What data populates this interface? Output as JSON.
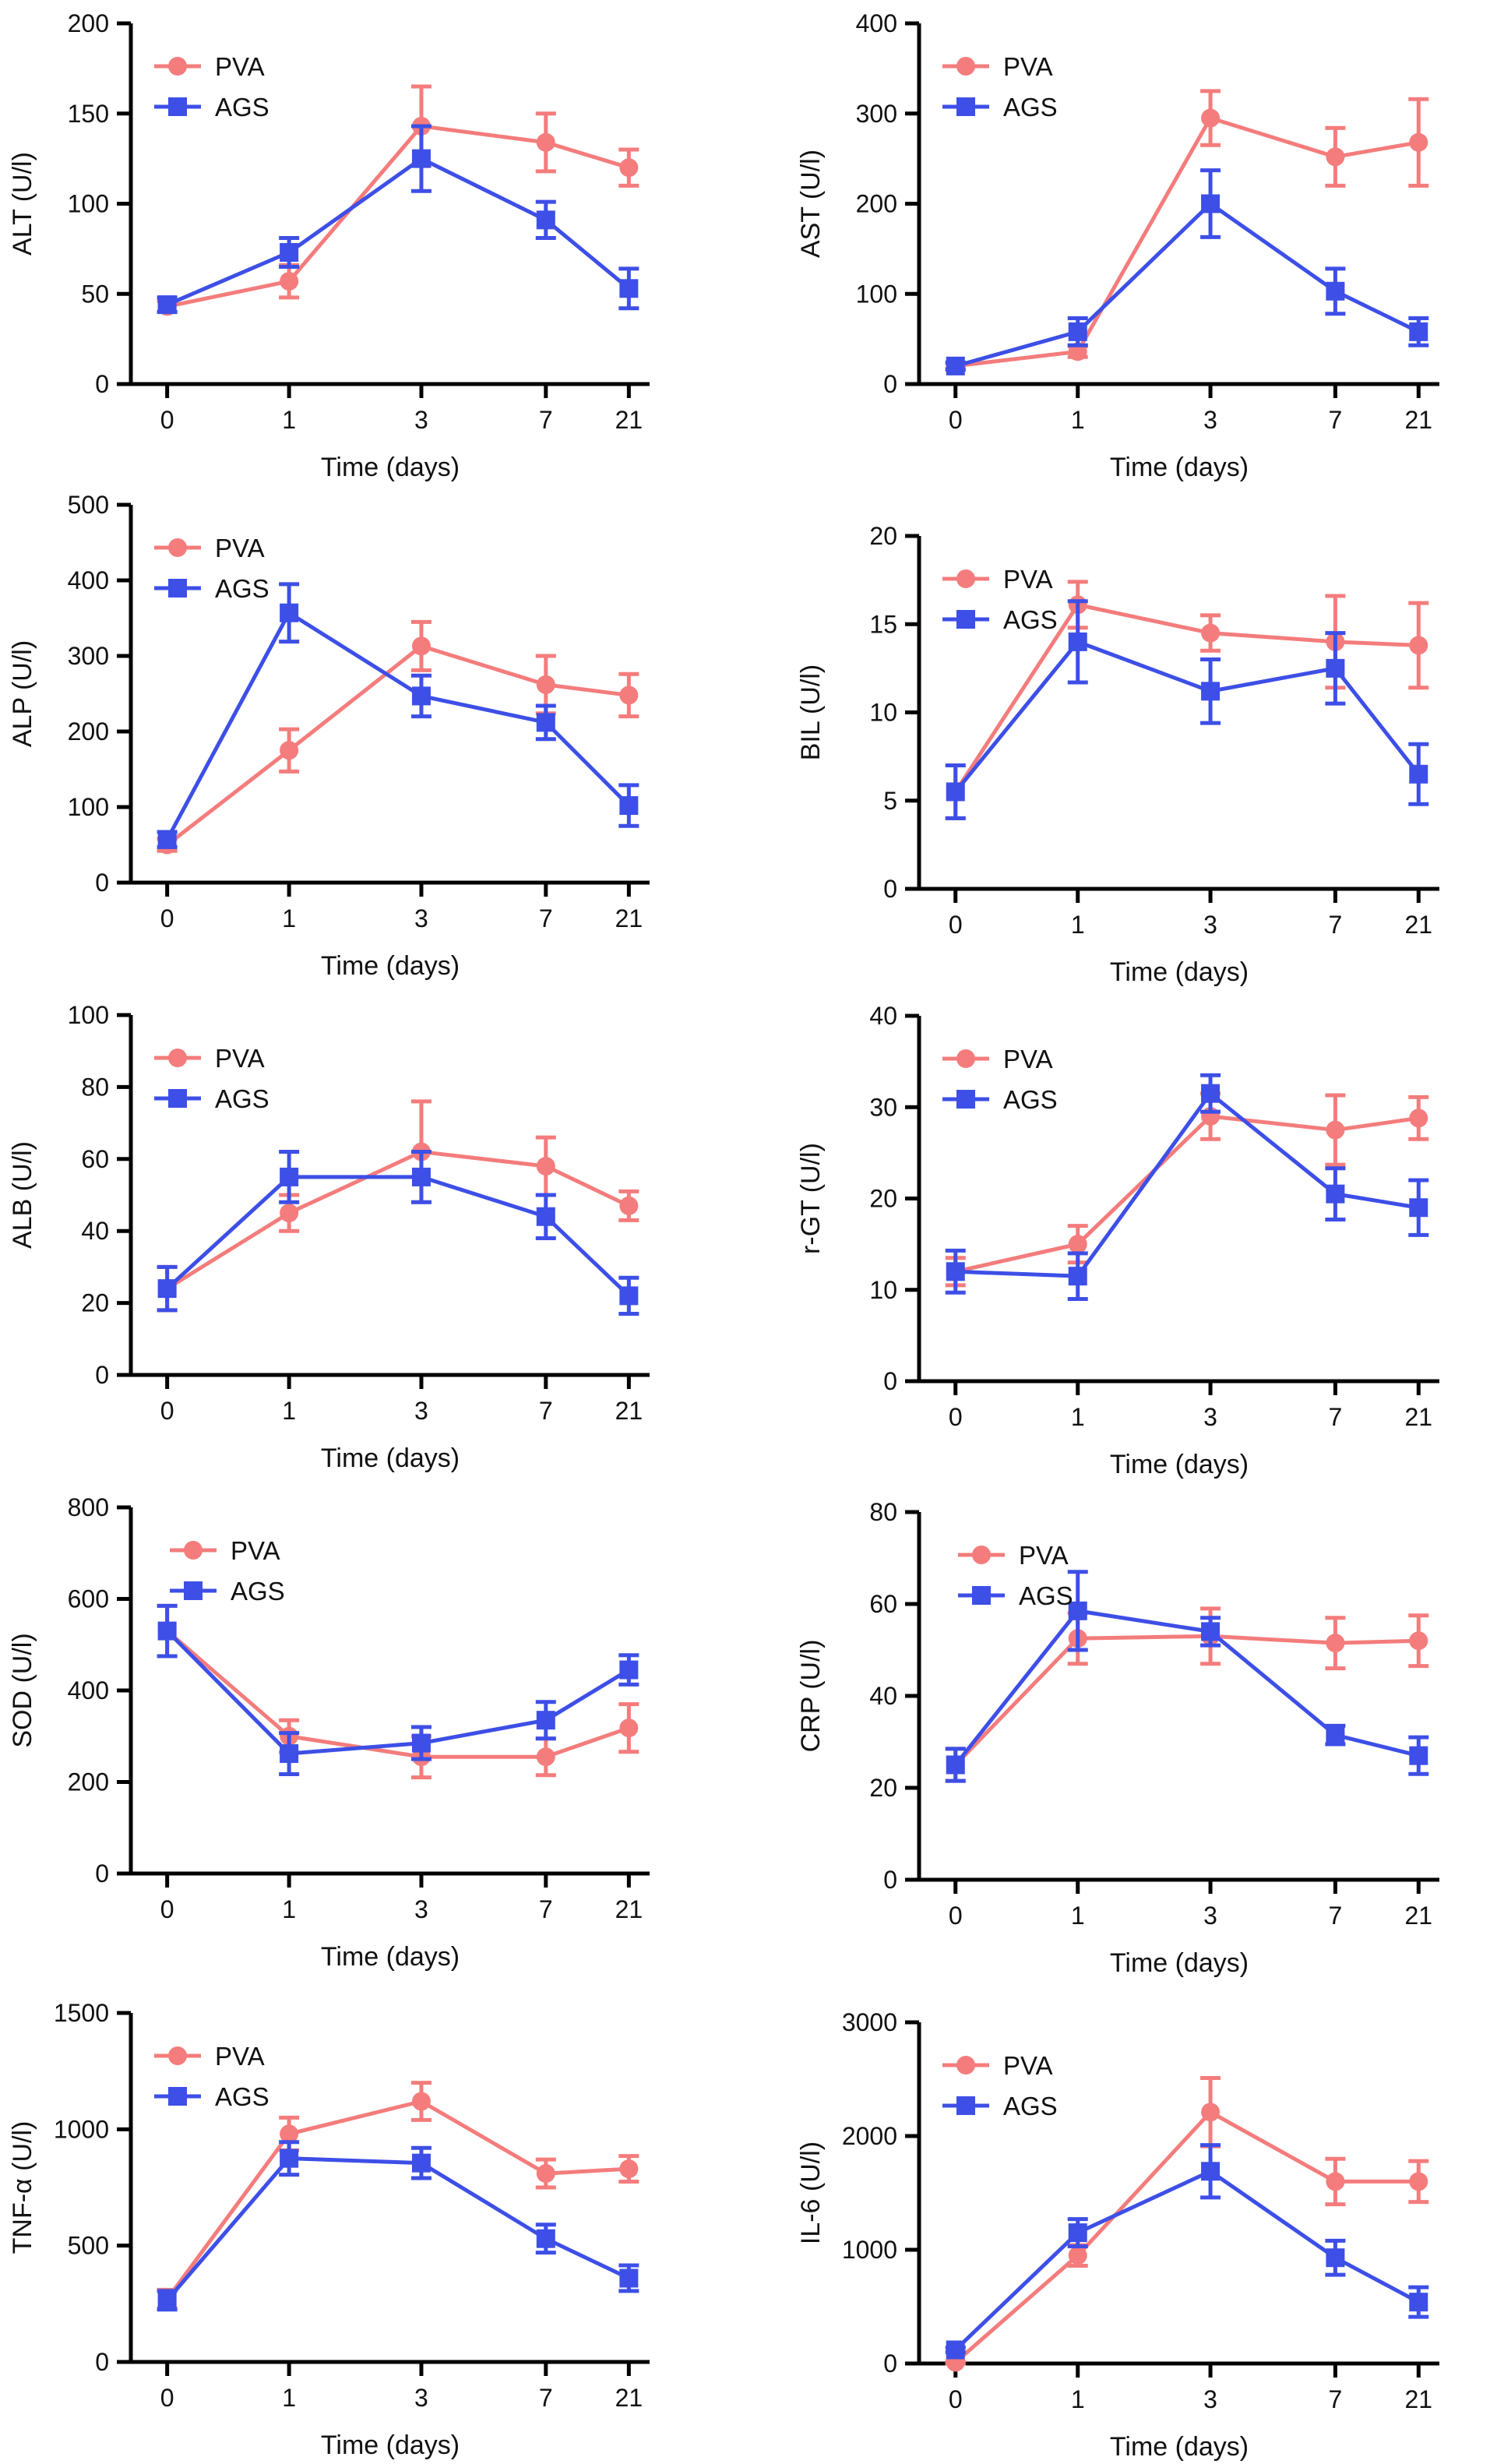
{
  "colors": {
    "pva": "#F47C7C",
    "ags": "#3D4FE6",
    "axis": "#000000"
  },
  "chart_data": [
    {
      "id": "alt",
      "type": "line",
      "title": "",
      "xlabel": "Time (days)",
      "ylabel": "ALT (U/l)",
      "categories": [
        "0",
        "1",
        "3",
        "7",
        "21"
      ],
      "ylim": [
        0,
        200
      ],
      "yticks": [
        "0",
        "50",
        "100",
        "150",
        "200"
      ],
      "legend_position": "top-left",
      "series": [
        {
          "name": "PVA",
          "values": [
            43,
            57,
            143,
            134,
            120
          ],
          "errors": [
            3,
            9,
            22,
            16,
            10
          ]
        },
        {
          "name": "AGS",
          "values": [
            44,
            73,
            125,
            91,
            53
          ],
          "errors": [
            4,
            8,
            18,
            10,
            11
          ]
        }
      ]
    },
    {
      "id": "ast",
      "type": "line",
      "title": "",
      "xlabel": "Time (days)",
      "ylabel": "AST (U/l)",
      "categories": [
        "0",
        "1",
        "3",
        "7",
        "21"
      ],
      "ylim": [
        0,
        400
      ],
      "yticks": [
        "0",
        "100",
        "200",
        "300",
        "400"
      ],
      "legend_position": "top-left",
      "series": [
        {
          "name": "PVA",
          "values": [
            20,
            36,
            295,
            252,
            268
          ],
          "errors": [
            3,
            6,
            30,
            32,
            48
          ]
        },
        {
          "name": "AGS",
          "values": [
            20,
            58,
            200,
            103,
            58
          ],
          "errors": [
            4,
            15,
            37,
            25,
            15
          ]
        }
      ]
    },
    {
      "id": "alp",
      "type": "line",
      "title": "",
      "xlabel": "Time (days)",
      "ylabel": "ALP (U/l)",
      "categories": [
        "0",
        "1",
        "3",
        "7",
        "21"
      ],
      "ylim": [
        0,
        500
      ],
      "yticks": [
        "0",
        "100",
        "200",
        "300",
        "400",
        "500"
      ],
      "legend_position": "top-left",
      "series": [
        {
          "name": "PVA",
          "values": [
            50,
            175,
            313,
            262,
            248
          ],
          "errors": [
            8,
            28,
            32,
            38,
            28
          ]
        },
        {
          "name": "AGS",
          "values": [
            57,
            357,
            247,
            212,
            102
          ],
          "errors": [
            10,
            38,
            27,
            22,
            27
          ]
        }
      ]
    },
    {
      "id": "bil",
      "type": "line",
      "title": "",
      "xlabel": "Time (days)",
      "ylabel": "BIL (U/l)",
      "categories": [
        "0",
        "1",
        "3",
        "7",
        "21"
      ],
      "ylim": [
        0,
        20
      ],
      "yticks": [
        "0",
        "5",
        "10",
        "15",
        "20"
      ],
      "legend_position": "top-left",
      "series": [
        {
          "name": "PVA",
          "values": [
            5.5,
            16.1,
            14.5,
            14.0,
            13.8
          ],
          "errors": [
            1.5,
            1.3,
            1.0,
            2.6,
            2.4
          ]
        },
        {
          "name": "AGS",
          "values": [
            5.5,
            14.0,
            11.2,
            12.5,
            6.5
          ],
          "errors": [
            1.5,
            2.3,
            1.8,
            2.0,
            1.7
          ]
        }
      ]
    },
    {
      "id": "alb",
      "type": "line",
      "title": "",
      "xlabel": "Time (days)",
      "ylabel": "ALB (U/l)",
      "categories": [
        "0",
        "1",
        "3",
        "7",
        "21"
      ],
      "ylim": [
        0,
        100
      ],
      "yticks": [
        "0",
        "20",
        "40",
        "60",
        "80",
        "100"
      ],
      "legend_position": "top-left",
      "series": [
        {
          "name": "PVA",
          "values": [
            24,
            45,
            62,
            58,
            47
          ],
          "errors": [
            6,
            5,
            14,
            8,
            4
          ]
        },
        {
          "name": "AGS",
          "values": [
            24,
            55,
            55,
            44,
            22
          ],
          "errors": [
            6,
            7,
            7,
            6,
            5
          ]
        }
      ]
    },
    {
      "id": "rgt",
      "type": "line",
      "title": "",
      "xlabel": "Time (days)",
      "ylabel": "r-GT (U/l)",
      "categories": [
        "0",
        "1",
        "3",
        "7",
        "21"
      ],
      "ylim": [
        0,
        40
      ],
      "yticks": [
        "0",
        "10",
        "20",
        "30",
        "40"
      ],
      "legend_position": "top-left",
      "series": [
        {
          "name": "PVA",
          "values": [
            12,
            15,
            29,
            27.5,
            28.8
          ],
          "errors": [
            1.5,
            2,
            2.5,
            3.8,
            2.3
          ]
        },
        {
          "name": "AGS",
          "values": [
            12,
            11.5,
            31.5,
            20.5,
            19
          ],
          "errors": [
            2.3,
            2.5,
            2,
            2.8,
            3
          ]
        }
      ]
    },
    {
      "id": "sod",
      "type": "line",
      "title": "",
      "xlabel": "Time (days)",
      "ylabel": "SOD (U/l)",
      "categories": [
        "0",
        "1",
        "3",
        "7",
        "21"
      ],
      "ylim": [
        0,
        800
      ],
      "yticks": [
        "0",
        "200",
        "400",
        "600",
        "800"
      ],
      "legend_position": "top-right",
      "series": [
        {
          "name": "PVA",
          "values": [
            530,
            300,
            255,
            255,
            318
          ],
          "errors": [
            55,
            35,
            45,
            40,
            52
          ]
        },
        {
          "name": "AGS",
          "values": [
            530,
            262,
            285,
            335,
            445
          ],
          "errors": [
            55,
            45,
            35,
            40,
            32
          ]
        }
      ]
    },
    {
      "id": "crp",
      "type": "line",
      "title": "",
      "xlabel": "Time (days)",
      "ylabel": "CRP (U/l)",
      "categories": [
        "0",
        "1",
        "3",
        "7",
        "21"
      ],
      "ylim": [
        0,
        80
      ],
      "yticks": [
        "0",
        "20",
        "40",
        "60",
        "80"
      ],
      "legend_position": "top-right",
      "series": [
        {
          "name": "PVA",
          "values": [
            25,
            52.5,
            53,
            51.5,
            52
          ],
          "errors": [
            3.5,
            5.5,
            6,
            5.5,
            5.5
          ]
        },
        {
          "name": "AGS",
          "values": [
            25,
            58.5,
            54,
            31.5,
            27
          ],
          "errors": [
            3.5,
            8.5,
            3,
            2,
            4
          ]
        }
      ]
    },
    {
      "id": "tnf",
      "type": "line",
      "title": "",
      "xlabel": "Time (days)",
      "ylabel": "TNF-α (U/l)",
      "categories": [
        "0",
        "1",
        "3",
        "7",
        "21"
      ],
      "ylim": [
        0,
        1500
      ],
      "yticks": [
        "0",
        "500",
        "1000",
        "1500"
      ],
      "legend_position": "top-left",
      "series": [
        {
          "name": "PVA",
          "values": [
            270,
            980,
            1120,
            810,
            830
          ],
          "errors": [
            40,
            70,
            80,
            60,
            55
          ]
        },
        {
          "name": "AGS",
          "values": [
            265,
            875,
            855,
            530,
            360
          ],
          "errors": [
            40,
            70,
            65,
            60,
            55
          ]
        }
      ]
    },
    {
      "id": "il6",
      "type": "line",
      "title": "",
      "xlabel": "Time (days)",
      "ylabel": "IL-6 (U/l)",
      "categories": [
        "0",
        "1",
        "3",
        "7",
        "21"
      ],
      "ylim": [
        0,
        3000
      ],
      "yticks": [
        "0",
        "1000",
        "2000",
        "3000"
      ],
      "legend_position": "top-left",
      "series": [
        {
          "name": "PVA",
          "values": [
            10,
            950,
            2210,
            1600,
            1600
          ],
          "errors": [
            10,
            90,
            300,
            200,
            180
          ]
        },
        {
          "name": "AGS",
          "values": [
            120,
            1150,
            1690,
            930,
            540
          ],
          "errors": [
            20,
            120,
            230,
            150,
            130
          ]
        }
      ]
    }
  ]
}
